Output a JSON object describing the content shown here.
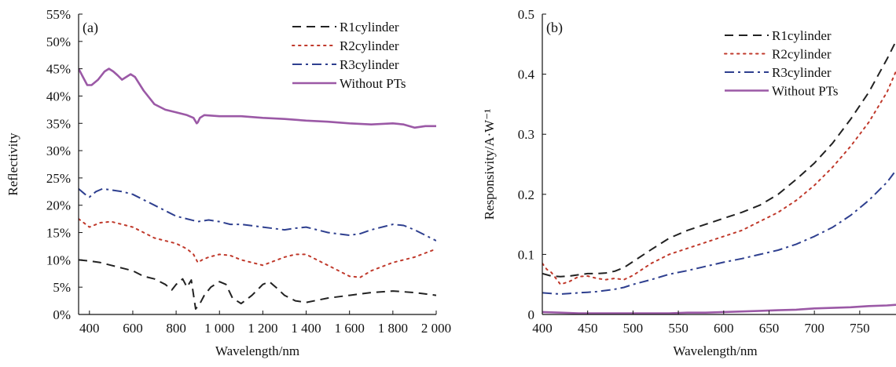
{
  "chart_data": [
    {
      "type": "line",
      "panel_label": "(a)",
      "xlabel": "Wavelength/nm",
      "ylabel": "Reflectivity",
      "xlim": [
        350,
        2000
      ],
      "ylim": [
        0,
        55
      ],
      "x_ticks": [
        400,
        600,
        800,
        1000,
        1200,
        1400,
        1600,
        1800,
        2000
      ],
      "x_tick_labels": [
        "400",
        "600",
        "800",
        "1 000",
        "1 200",
        "1 400",
        "1 600",
        "1 800",
        "2 000"
      ],
      "y_ticks": [
        0,
        5,
        10,
        15,
        20,
        25,
        30,
        35,
        40,
        45,
        50,
        55
      ],
      "y_tick_labels": [
        "0%",
        "5%",
        "10%",
        "15%",
        "20%",
        "25%",
        "30%",
        "35%",
        "40%",
        "45%",
        "50%",
        "55%"
      ],
      "grid": false,
      "legend_position": "top-right",
      "series": [
        {
          "name": "R1cylinder",
          "color": "#222222",
          "dash": "dash",
          "x": [
            350,
            400,
            450,
            500,
            550,
            600,
            650,
            700,
            750,
            780,
            800,
            830,
            850,
            870,
            890,
            910,
            930,
            960,
            1000,
            1030,
            1060,
            1100,
            1150,
            1200,
            1230,
            1260,
            1300,
            1350,
            1400,
            1500,
            1600,
            1700,
            1800,
            1900,
            2000
          ],
          "y": [
            10.0,
            9.8,
            9.5,
            9.0,
            8.5,
            8.0,
            7.0,
            6.5,
            5.5,
            4.5,
            5.5,
            6.5,
            5.0,
            6.3,
            1.0,
            2.0,
            3.5,
            5.0,
            6.0,
            5.5,
            3.0,
            2.0,
            3.5,
            5.5,
            6.0,
            5.0,
            3.5,
            2.5,
            2.2,
            3.0,
            3.5,
            4.0,
            4.3,
            4.0,
            3.5
          ]
        },
        {
          "name": "R2cylinder",
          "color": "#c0392b",
          "dash": "dot",
          "x": [
            350,
            400,
            450,
            500,
            550,
            600,
            650,
            700,
            750,
            800,
            850,
            880,
            900,
            920,
            950,
            1000,
            1050,
            1100,
            1150,
            1200,
            1300,
            1350,
            1400,
            1450,
            1500,
            1550,
            1600,
            1650,
            1700,
            1800,
            1900,
            2000
          ],
          "y": [
            17.5,
            16.0,
            16.8,
            17.0,
            16.5,
            16.0,
            15.0,
            14.0,
            13.5,
            13.0,
            12.0,
            11.0,
            9.5,
            10.0,
            10.5,
            11.0,
            10.8,
            10.0,
            9.5,
            9.0,
            10.5,
            11.0,
            11.0,
            10.0,
            9.0,
            8.0,
            7.0,
            6.8,
            8.0,
            9.5,
            10.5,
            12.0
          ]
        },
        {
          "name": "R3cylinder",
          "color": "#2e3f8f",
          "dash": "dashdot",
          "x": [
            350,
            380,
            400,
            430,
            460,
            500,
            550,
            600,
            650,
            700,
            750,
            800,
            850,
            900,
            950,
            1000,
            1050,
            1100,
            1200,
            1300,
            1350,
            1400,
            1500,
            1600,
            1650,
            1700,
            1800,
            1850,
            1900,
            1950,
            2000
          ],
          "y": [
            23.0,
            22.0,
            21.5,
            22.5,
            23.0,
            22.8,
            22.5,
            22.0,
            21.0,
            20.0,
            19.0,
            18.0,
            17.5,
            17.0,
            17.3,
            17.0,
            16.5,
            16.5,
            16.0,
            15.5,
            15.8,
            16.0,
            15.0,
            14.5,
            14.8,
            15.5,
            16.5,
            16.3,
            15.5,
            14.5,
            13.5
          ]
        },
        {
          "name": "Without PTs",
          "color": "#9b59a6",
          "dash": "solid",
          "x": [
            350,
            370,
            390,
            410,
            440,
            470,
            490,
            510,
            530,
            550,
            570,
            590,
            610,
            650,
            700,
            750,
            800,
            850,
            880,
            895,
            900,
            910,
            930,
            1000,
            1100,
            1200,
            1300,
            1400,
            1500,
            1600,
            1700,
            1800,
            1850,
            1900,
            1950,
            2000
          ],
          "y": [
            45.0,
            43.5,
            42.0,
            42.0,
            43.0,
            44.5,
            45.0,
            44.5,
            43.8,
            43.0,
            43.5,
            44.0,
            43.5,
            41.0,
            38.5,
            37.5,
            37.0,
            36.5,
            36.0,
            35.0,
            35.2,
            36.0,
            36.5,
            36.3,
            36.3,
            36.0,
            35.8,
            35.5,
            35.3,
            35.0,
            34.8,
            35.0,
            34.8,
            34.2,
            34.5,
            34.5
          ]
        }
      ]
    },
    {
      "type": "line",
      "panel_label": "(b)",
      "xlabel": "Wavelength/nm",
      "ylabel": "Responsivity/A·W⁻¹",
      "xlim": [
        400,
        790
      ],
      "ylim": [
        0,
        0.5
      ],
      "x_ticks": [
        400,
        450,
        500,
        550,
        600,
        650,
        700,
        750
      ],
      "x_tick_labels": [
        "400",
        "450",
        "500",
        "550",
        "600",
        "650",
        "700",
        "750"
      ],
      "y_ticks": [
        0,
        0.1,
        0.2,
        0.3,
        0.4,
        0.5
      ],
      "y_tick_labels": [
        "0",
        "0.1",
        "0.2",
        "0.3",
        "0.4",
        "0.5"
      ],
      "grid": false,
      "legend_position": "top-right",
      "series": [
        {
          "name": "R1cylinder",
          "color": "#222222",
          "dash": "dash",
          "x": [
            400,
            410,
            420,
            430,
            440,
            450,
            460,
            470,
            480,
            490,
            500,
            520,
            540,
            560,
            580,
            600,
            620,
            640,
            660,
            680,
            700,
            720,
            740,
            760,
            780,
            790
          ],
          "y": [
            0.068,
            0.064,
            0.063,
            0.064,
            0.066,
            0.068,
            0.068,
            0.069,
            0.072,
            0.078,
            0.088,
            0.108,
            0.127,
            0.14,
            0.15,
            0.16,
            0.17,
            0.182,
            0.2,
            0.225,
            0.252,
            0.285,
            0.325,
            0.37,
            0.425,
            0.455
          ]
        },
        {
          "name": "R2cylinder",
          "color": "#c0392b",
          "dash": "dot",
          "x": [
            400,
            405,
            410,
            415,
            420,
            430,
            440,
            450,
            460,
            470,
            480,
            490,
            500,
            520,
            540,
            560,
            580,
            600,
            620,
            640,
            660,
            680,
            700,
            720,
            740,
            760,
            780,
            790
          ],
          "y": [
            0.085,
            0.075,
            0.07,
            0.06,
            0.05,
            0.055,
            0.063,
            0.064,
            0.06,
            0.058,
            0.06,
            0.058,
            0.065,
            0.085,
            0.1,
            0.11,
            0.12,
            0.13,
            0.14,
            0.155,
            0.17,
            0.19,
            0.215,
            0.245,
            0.28,
            0.32,
            0.37,
            0.405
          ]
        },
        {
          "name": "R3cylinder",
          "color": "#2e3f8f",
          "dash": "dashdot",
          "x": [
            400,
            410,
            420,
            430,
            440,
            450,
            460,
            470,
            480,
            490,
            500,
            520,
            540,
            560,
            580,
            600,
            620,
            640,
            660,
            680,
            700,
            720,
            740,
            760,
            780,
            790
          ],
          "y": [
            0.036,
            0.035,
            0.034,
            0.035,
            0.036,
            0.037,
            0.038,
            0.04,
            0.042,
            0.045,
            0.05,
            0.058,
            0.067,
            0.073,
            0.08,
            0.087,
            0.093,
            0.1,
            0.107,
            0.117,
            0.13,
            0.145,
            0.165,
            0.19,
            0.22,
            0.24
          ]
        },
        {
          "name": "Without PTs",
          "color": "#9b59a6",
          "dash": "solid",
          "x": [
            400,
            420,
            440,
            460,
            480,
            500,
            520,
            540,
            560,
            580,
            600,
            620,
            640,
            660,
            680,
            700,
            720,
            740,
            760,
            780,
            790
          ],
          "y": [
            0.004,
            0.003,
            0.002,
            0.002,
            0.002,
            0.002,
            0.002,
            0.002,
            0.003,
            0.003,
            0.004,
            0.005,
            0.006,
            0.007,
            0.008,
            0.01,
            0.011,
            0.012,
            0.014,
            0.015,
            0.016
          ]
        }
      ]
    }
  ]
}
